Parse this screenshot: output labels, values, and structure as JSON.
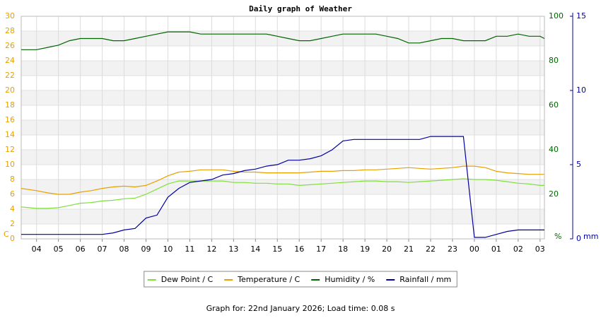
{
  "chart_data": {
    "type": "line",
    "title": "Daily graph of Weather",
    "x": [
      3.3,
      4,
      4.5,
      5,
      5.5,
      6,
      6.5,
      7,
      7.5,
      8,
      8.5,
      9,
      9.5,
      10,
      10.5,
      11,
      11.5,
      12,
      12.5,
      13,
      13.5,
      14,
      14.5,
      15,
      15.5,
      16,
      16.5,
      17,
      17.5,
      18,
      18.5,
      19,
      19.5,
      20,
      20.5,
      21,
      21.5,
      22,
      22.5,
      23,
      23.5,
      24,
      24.5,
      25,
      25.5,
      26,
      26.5,
      27,
      27.2
    ],
    "xlim": [
      3.3,
      27.2
    ],
    "xticks": [
      {
        "value": 4,
        "label": "04"
      },
      {
        "value": 5,
        "label": "05"
      },
      {
        "value": 6,
        "label": "06"
      },
      {
        "value": 7,
        "label": "07"
      },
      {
        "value": 8,
        "label": "08"
      },
      {
        "value": 9,
        "label": "09"
      },
      10,
      11,
      12,
      13,
      14,
      15,
      16,
      17,
      18,
      19,
      20,
      21,
      22,
      23,
      {
        "value": 24,
        "label": "00"
      },
      {
        "value": 25,
        "label": "01"
      },
      {
        "value": 26,
        "label": "02"
      },
      {
        "value": 27,
        "label": "03"
      }
    ],
    "ylim": [
      0,
      30
    ],
    "yticks": [
      0,
      2,
      4,
      6,
      8,
      10,
      12,
      14,
      16,
      18,
      20,
      22,
      24,
      26,
      28,
      30
    ],
    "ylabel": "C",
    "y2lim": [
      0,
      100
    ],
    "y2ticks": [
      20,
      40,
      60,
      80,
      100
    ],
    "y2label": "%",
    "y3lim": [
      0,
      15
    ],
    "y3ticks": [
      0,
      5,
      10,
      15
    ],
    "y3label": "mm",
    "grid": true,
    "series": [
      {
        "name": "Dew Point / C",
        "color": "#7fe03a",
        "axis": "y",
        "values": [
          4.3,
          4.1,
          4.1,
          4.2,
          4.5,
          4.8,
          4.9,
          5.1,
          5.2,
          5.4,
          5.5,
          6.0,
          6.7,
          7.4,
          7.8,
          7.8,
          7.8,
          7.8,
          7.8,
          7.6,
          7.6,
          7.5,
          7.5,
          7.4,
          7.4,
          7.2,
          7.3,
          7.4,
          7.5,
          7.6,
          7.7,
          7.8,
          7.8,
          7.7,
          7.7,
          7.6,
          7.7,
          7.8,
          7.9,
          8.0,
          8.1,
          8.0,
          8.0,
          7.9,
          7.7,
          7.5,
          7.4,
          7.2,
          7.2
        ]
      },
      {
        "name": "Temperature / C",
        "color": "#e8a000",
        "axis": "y",
        "values": [
          6.8,
          6.5,
          6.2,
          6.0,
          6.0,
          6.3,
          6.5,
          6.8,
          7.0,
          7.1,
          7.0,
          7.2,
          7.8,
          8.5,
          9.0,
          9.1,
          9.3,
          9.3,
          9.3,
          9.1,
          9.0,
          9.0,
          8.9,
          8.9,
          8.9,
          8.9,
          9.0,
          9.1,
          9.1,
          9.2,
          9.2,
          9.3,
          9.3,
          9.4,
          9.5,
          9.6,
          9.5,
          9.4,
          9.5,
          9.6,
          9.8,
          9.8,
          9.6,
          9.1,
          8.9,
          8.8,
          8.7,
          8.7,
          8.7
        ]
      },
      {
        "name": "Humidity / %",
        "color": "#006400",
        "axis": "y2",
        "values": [
          85,
          85,
          86,
          87,
          89,
          90,
          90,
          90,
          89,
          89,
          90,
          91,
          92,
          93,
          93,
          93,
          92,
          92,
          92,
          92,
          92,
          92,
          92,
          91,
          90,
          89,
          89,
          90,
          91,
          92,
          92,
          92,
          92,
          91,
          90,
          88,
          88,
          89,
          90,
          90,
          89,
          89,
          89,
          91,
          91,
          92,
          91,
          91,
          90
        ]
      },
      {
        "name": "Rainfall / mm",
        "color": "#0000a0",
        "axis": "y3",
        "values": [
          0.3,
          0.3,
          0.3,
          0.3,
          0.3,
          0.3,
          0.3,
          0.3,
          0.4,
          0.6,
          0.7,
          1.4,
          1.6,
          2.8,
          3.4,
          3.8,
          3.9,
          4.0,
          4.3,
          4.4,
          4.6,
          4.7,
          4.9,
          5.0,
          5.3,
          5.3,
          5.4,
          5.6,
          6.0,
          6.6,
          6.7,
          6.7,
          6.7,
          6.7,
          6.7,
          6.7,
          6.7,
          6.9,
          6.9,
          6.9,
          6.9,
          0.1,
          0.1,
          0.3,
          0.5,
          0.6,
          0.6,
          0.6,
          0.6
        ]
      }
    ],
    "footer": "Graph for: 22nd January 2026; Load time: 0.08 s"
  }
}
